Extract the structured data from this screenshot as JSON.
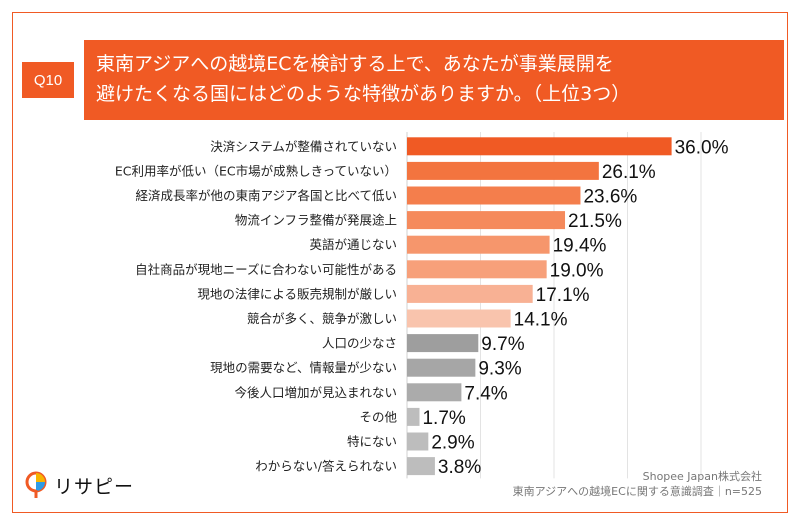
{
  "question": {
    "badge": "Q10",
    "title_line1": "東南アジアへの越境ECを検討する上で、あなたが事業展開を",
    "title_line2": "避けたくなる国にはどのような特徴がありますか。（上位3つ）"
  },
  "footer": {
    "line1": "Shopee Japan株式会社",
    "line2": "東南アジアへの越境ECに関する意識調査｜n=525"
  },
  "logo": {
    "text": "リサピー"
  },
  "colors": {
    "accent": "#f05a24",
    "gray": "#9e9e9e"
  },
  "chart_data": {
    "type": "bar",
    "orientation": "horizontal",
    "categories": [
      "決済システムが整備されていない",
      "EC利用率が低い（EC市場が成熟しきっていない）",
      "経済成長率が他の東南アジア各国と比べて低い",
      "物流インフラ整備が発展途上",
      "英語が通じない",
      "自社商品が現地ニーズに合わない可能性がある",
      "現地の法律による販売規制が厳しい",
      "競合が多く、競争が激しい",
      "人口の少なさ",
      "現地の需要など、情報量が少ない",
      "今後人口増加が見込まれない",
      "その他",
      "特にない",
      "わからない/答えられない"
    ],
    "values": [
      36.0,
      26.1,
      23.6,
      21.5,
      19.4,
      19.0,
      17.1,
      14.1,
      9.7,
      9.3,
      7.4,
      1.7,
      2.9,
      3.8
    ],
    "value_labels": [
      "36.0%",
      "26.1%",
      "23.6%",
      "21.5%",
      "19.4%",
      "19.0%",
      "17.1%",
      "14.1%",
      "9.7%",
      "9.3%",
      "7.4%",
      "1.7%",
      "2.9%",
      "3.8%"
    ],
    "bar_colors": [
      "#f05a24",
      "#f3743f",
      "#f47e4c",
      "#f58a5c",
      "#f6966c",
      "#f7a07a",
      "#f8b194",
      "#f9c4ad",
      "#9e9e9e",
      "#a6a6a6",
      "#ababab",
      "#bdbdbd",
      "#bdbdbd",
      "#bdbdbd"
    ],
    "xlim": [
      0,
      40
    ],
    "grid": "vertical"
  }
}
